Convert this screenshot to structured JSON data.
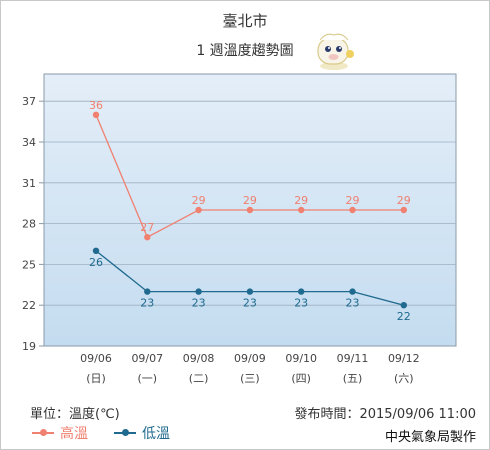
{
  "header": {
    "title": "臺北市",
    "subtitle": "1 週溫度趨勢圖"
  },
  "colors": {
    "high": "#f08070",
    "low": "#1f6a8e",
    "plot_top": "#e4eef8",
    "plot_bottom": "#c4dcf0"
  },
  "chart_data": {
    "type": "line",
    "categories": [
      "09/06",
      "09/07",
      "09/08",
      "09/09",
      "09/10",
      "09/11",
      "09/12"
    ],
    "weekdays": [
      "(日)",
      "(一)",
      "(二)",
      "(三)",
      "(四)",
      "(五)",
      "(六)"
    ],
    "yticks": [
      19,
      22,
      25,
      28,
      31,
      34,
      37
    ],
    "ylim": [
      19,
      39
    ],
    "grid": true,
    "series": [
      {
        "name": "高溫",
        "key": "high",
        "values": [
          36,
          27,
          29,
          29,
          29,
          29,
          29
        ]
      },
      {
        "name": "低溫",
        "key": "low",
        "values": [
          26,
          23,
          23,
          23,
          23,
          23,
          22
        ]
      }
    ]
  },
  "footer": {
    "unit": "單位：溫度(℃)",
    "issued": "發布時間：2015/09/06 11:00",
    "credit": "中央氣象局製作"
  },
  "legend": {
    "high_label": "高溫",
    "low_label": "低溫"
  },
  "mascot_icon": "weather-mascot-icon"
}
